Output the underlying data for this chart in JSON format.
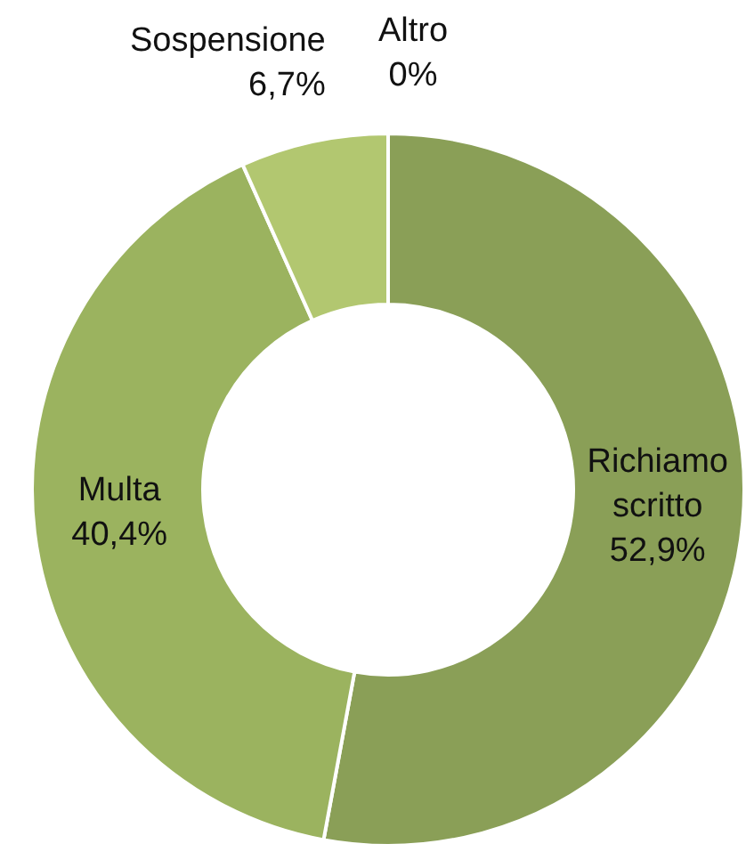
{
  "chart_data": {
    "type": "donut",
    "categories": [
      "Richiamo scritto",
      "Multa",
      "Sospensione",
      "Altro"
    ],
    "values": [
      52.9,
      40.4,
      6.7,
      0
    ],
    "value_labels": [
      "52,9%",
      "40,4%",
      "6,7%",
      "0%"
    ],
    "colors": [
      "#8a9f57",
      "#9bb35f",
      "#b2c770",
      "#c4d68a"
    ]
  }
}
